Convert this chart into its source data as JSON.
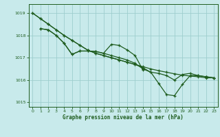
{
  "bg_color": "#c8eaeb",
  "grid_color": "#9ecece",
  "line_color": "#1e5c1e",
  "xlabel": "Graphe pression niveau de la mer (hPa)",
  "xlim": [
    -0.5,
    23.5
  ],
  "ylim": [
    1014.8,
    1019.4
  ],
  "yticks": [
    1015,
    1016,
    1017,
    1018,
    1019
  ],
  "xticks": [
    0,
    1,
    2,
    3,
    4,
    5,
    6,
    7,
    8,
    9,
    10,
    11,
    12,
    13,
    14,
    15,
    16,
    17,
    18,
    19,
    20,
    21,
    22,
    23
  ],
  "series1_x": [
    0,
    1,
    2,
    3,
    4,
    5,
    6,
    7,
    8,
    9,
    10,
    11,
    12,
    13,
    14,
    15,
    16,
    17,
    18,
    19,
    20,
    21,
    22,
    23
  ],
  "series1_y": [
    1019.0,
    1018.75,
    1018.5,
    1018.25,
    1018.0,
    1017.78,
    1017.56,
    1017.34,
    1017.2,
    1017.1,
    1017.0,
    1016.9,
    1016.8,
    1016.7,
    1016.6,
    1016.5,
    1016.42,
    1016.35,
    1016.28,
    1016.22,
    1016.18,
    1016.15,
    1016.1,
    1016.1
  ],
  "series2_x": [
    0,
    1,
    2,
    3,
    4,
    5,
    6,
    7,
    8,
    9,
    10,
    11,
    12,
    13,
    14,
    15,
    16,
    17,
    18,
    19,
    20,
    21,
    22,
    23
  ],
  "series2_y": [
    1019.0,
    1018.75,
    1018.5,
    1018.25,
    1018.0,
    1017.78,
    1017.56,
    1017.34,
    1017.2,
    1017.1,
    1017.0,
    1016.9,
    1016.8,
    1016.7,
    1016.55,
    1016.35,
    1015.85,
    1015.35,
    1015.3,
    1015.8,
    1016.2,
    1016.2,
    1016.15,
    1016.1
  ],
  "series3_x": [
    1,
    2,
    3,
    4,
    5,
    6,
    7,
    8,
    9,
    10,
    11,
    12,
    13,
    14,
    15,
    16,
    17,
    18,
    19,
    20,
    21,
    22,
    23
  ],
  "series3_y": [
    1018.3,
    1018.25,
    1018.0,
    1017.65,
    1017.15,
    1017.3,
    1017.3,
    1017.28,
    1017.2,
    1017.1,
    1017.0,
    1016.9,
    1016.75,
    1016.5,
    1016.35,
    1016.3,
    1016.2,
    1016.0,
    1016.25,
    1016.3,
    1016.2,
    1016.15,
    1016.1
  ],
  "series4_x": [
    1,
    2,
    3,
    4,
    5,
    6,
    7,
    8,
    9,
    10,
    11,
    12,
    13,
    14
  ],
  "series4_y": [
    1018.3,
    1018.25,
    1018.0,
    1017.65,
    1017.15,
    1017.3,
    1017.3,
    1017.28,
    1017.2,
    1017.6,
    1017.55,
    1017.35,
    1017.1,
    1016.45
  ]
}
